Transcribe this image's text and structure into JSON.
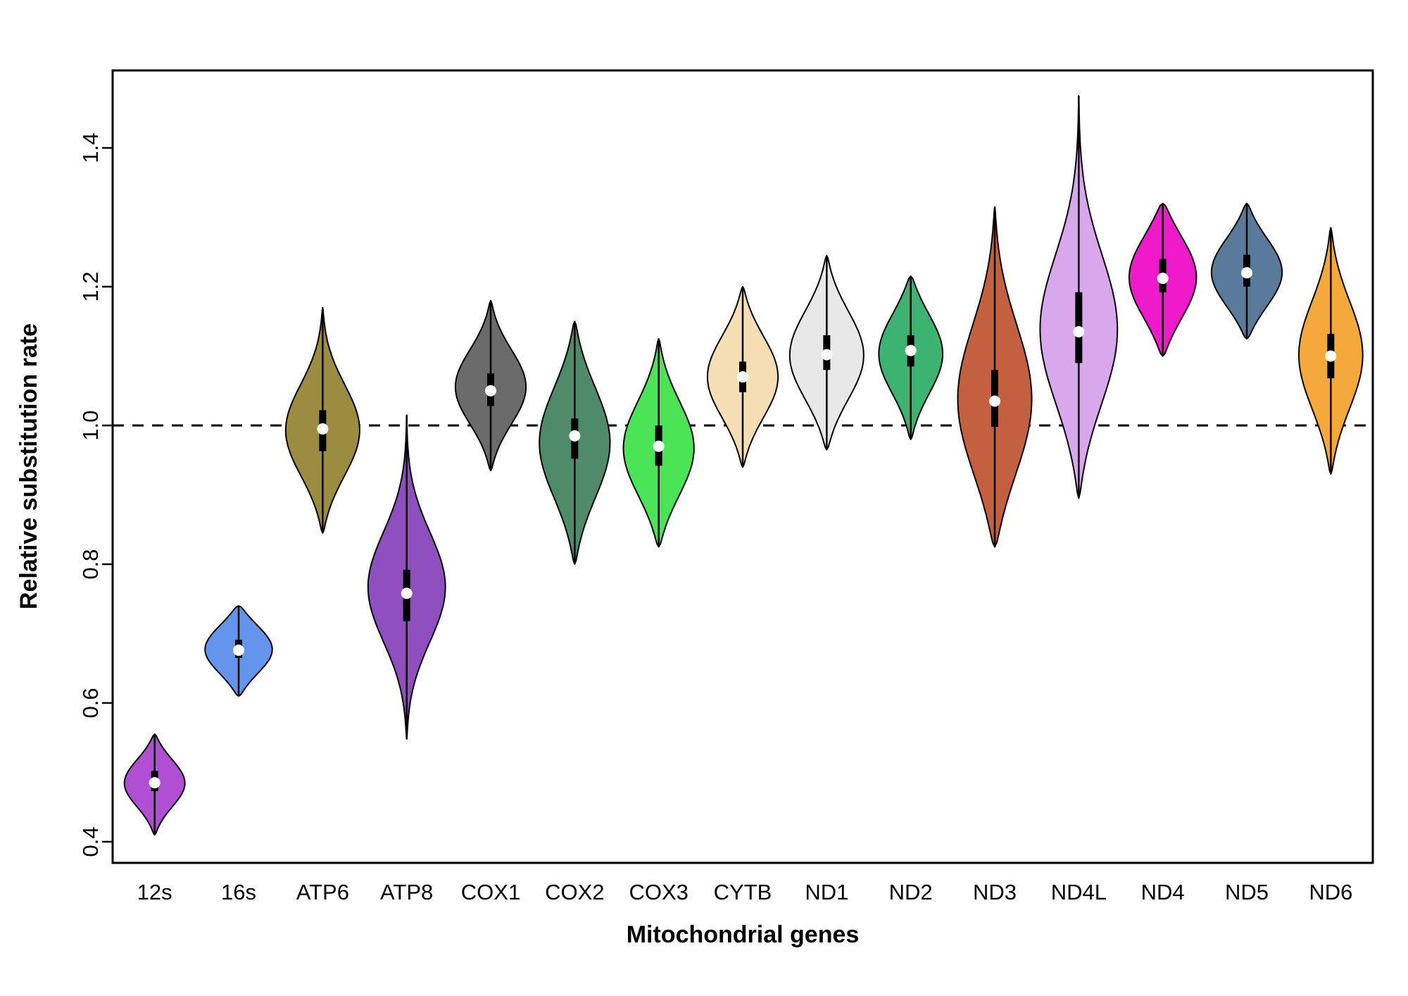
{
  "chart_data": {
    "type": "violin",
    "title": "",
    "xlabel": "Mitochondrial genes",
    "ylabel": "Relative substitution rate",
    "ylim": [
      0.37,
      1.51
    ],
    "yticks": [
      0.4,
      0.6,
      0.8,
      1.0,
      1.2,
      1.4
    ],
    "grid": false,
    "legend": "none",
    "reference_line": {
      "y": 1.0,
      "style": "dashed",
      "color": "#000000"
    },
    "frame_color": "#000000",
    "background_color": "#ffffff",
    "violins": [
      {
        "label": "12s",
        "color": "#B04FD4",
        "min": 0.41,
        "max": 0.555,
        "q1": 0.473,
        "median": 0.485,
        "q3": 0.502,
        "mode": 0.485,
        "width": 0.36,
        "sigma": 0.26
      },
      {
        "label": "16s",
        "color": "#6495ED",
        "min": 0.61,
        "max": 0.74,
        "q1": 0.665,
        "median": 0.676,
        "q3": 0.691,
        "mode": 0.678,
        "width": 0.4,
        "sigma": 0.3
      },
      {
        "label": "ATP6",
        "color": "#9C8C40",
        "min": 0.845,
        "max": 1.17,
        "q1": 0.963,
        "median": 0.995,
        "q3": 1.022,
        "mode": 0.99,
        "width": 0.44,
        "sigma": 0.22
      },
      {
        "label": "ATP8",
        "color": "#8F4FBE",
        "min": 0.548,
        "max": 1.015,
        "q1": 0.718,
        "median": 0.758,
        "q3": 0.792,
        "mode": 0.765,
        "width": 0.46,
        "sigma": 0.18
      },
      {
        "label": "COX1",
        "color": "#6B6B6B",
        "min": 0.935,
        "max": 1.18,
        "q1": 1.028,
        "median": 1.05,
        "q3": 1.075,
        "mode": 1.055,
        "width": 0.42,
        "sigma": 0.24
      },
      {
        "label": "COX2",
        "color": "#4F8A6B",
        "min": 0.8,
        "max": 1.15,
        "q1": 0.952,
        "median": 0.985,
        "q3": 1.01,
        "mode": 0.975,
        "width": 0.42,
        "sigma": 0.25
      },
      {
        "label": "COX3",
        "color": "#4BE456",
        "min": 0.825,
        "max": 1.125,
        "q1": 0.942,
        "median": 0.97,
        "q3": 1.0,
        "mode": 0.965,
        "width": 0.42,
        "sigma": 0.25
      },
      {
        "label": "CYTB",
        "color": "#F5DEB3",
        "min": 0.94,
        "max": 1.2,
        "q1": 1.048,
        "median": 1.07,
        "q3": 1.092,
        "mode": 1.07,
        "width": 0.42,
        "sigma": 0.25
      },
      {
        "label": "ND1",
        "color": "#E8E8E8",
        "min": 0.965,
        "max": 1.245,
        "q1": 1.08,
        "median": 1.102,
        "q3": 1.13,
        "mode": 1.1,
        "width": 0.44,
        "sigma": 0.25
      },
      {
        "label": "ND2",
        "color": "#3CB371",
        "min": 0.98,
        "max": 1.215,
        "q1": 1.085,
        "median": 1.108,
        "q3": 1.13,
        "mode": 1.105,
        "width": 0.38,
        "sigma": 0.27
      },
      {
        "label": "ND3",
        "color": "#C2603F",
        "min": 0.825,
        "max": 1.315,
        "q1": 0.998,
        "median": 1.035,
        "q3": 1.08,
        "mode": 1.03,
        "width": 0.44,
        "sigma": 0.24
      },
      {
        "label": "ND4L",
        "color": "#D9A7EC",
        "min": 0.895,
        "max": 1.475,
        "q1": 1.09,
        "median": 1.135,
        "q3": 1.192,
        "mode": 1.13,
        "width": 0.46,
        "sigma": 0.2
      },
      {
        "label": "ND4",
        "color": "#EF1AC9",
        "min": 1.1,
        "max": 1.32,
        "q1": 1.192,
        "median": 1.212,
        "q3": 1.24,
        "mode": 1.215,
        "width": 0.4,
        "sigma": 0.3
      },
      {
        "label": "ND5",
        "color": "#5A7A9B",
        "min": 1.125,
        "max": 1.32,
        "q1": 1.2,
        "median": 1.22,
        "q3": 1.246,
        "mode": 1.22,
        "width": 0.42,
        "sigma": 0.28
      },
      {
        "label": "ND6",
        "color": "#F5A93A",
        "min": 0.93,
        "max": 1.285,
        "q1": 1.068,
        "median": 1.1,
        "q3": 1.132,
        "mode": 1.1,
        "width": 0.38,
        "sigma": 0.24
      }
    ]
  }
}
